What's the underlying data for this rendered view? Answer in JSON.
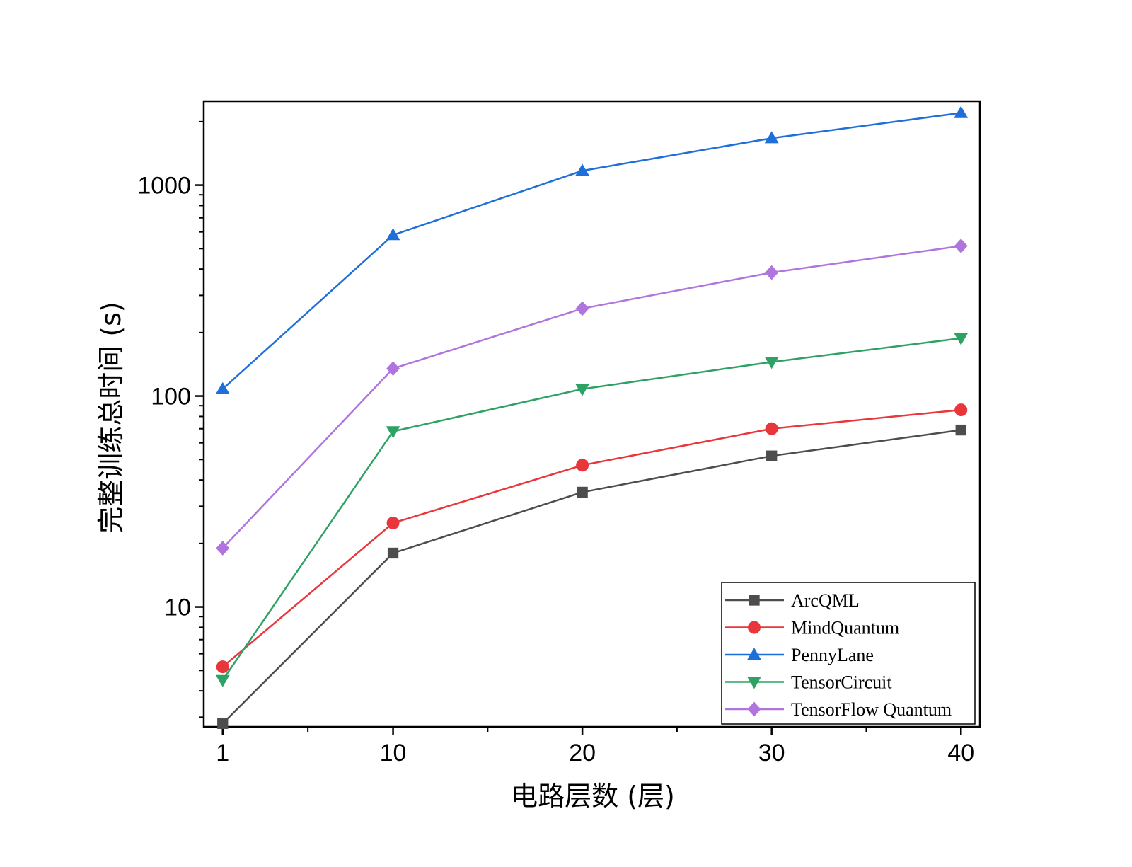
{
  "chart_data": {
    "type": "line",
    "title": "",
    "xlabel": "电路层数 (层)",
    "ylabel": "完整训练总时间 (s)",
    "x": [
      1,
      10,
      20,
      30,
      40
    ],
    "x_ticks": [
      1,
      10,
      20,
      30,
      40
    ],
    "xlim": [
      0,
      41
    ],
    "y_scale": "log",
    "y_ticks": [
      10,
      100,
      1000
    ],
    "ylim": [
      2.7,
      2500
    ],
    "grid": false,
    "legend_position": "bottom-right",
    "series": [
      {
        "name": "ArcQML",
        "marker": "square",
        "color": "#4d4d4d",
        "values": [
          2.8,
          18,
          35,
          52,
          69
        ]
      },
      {
        "name": "MindQuantum",
        "marker": "circle",
        "color": "#e8363b",
        "values": [
          5.2,
          25,
          47,
          70,
          86
        ]
      },
      {
        "name": "PennyLane",
        "marker": "triangle-up",
        "color": "#1f6fdb",
        "values": [
          108,
          580,
          1170,
          1670,
          2200
        ]
      },
      {
        "name": "TensorCircuit",
        "marker": "triangle-down",
        "color": "#2ea265",
        "values": [
          4.5,
          68,
          108,
          145,
          188
        ]
      },
      {
        "name": "TensorFlow Quantum",
        "marker": "diamond",
        "color": "#b074dd",
        "values": [
          19,
          135,
          260,
          385,
          515
        ]
      }
    ]
  }
}
